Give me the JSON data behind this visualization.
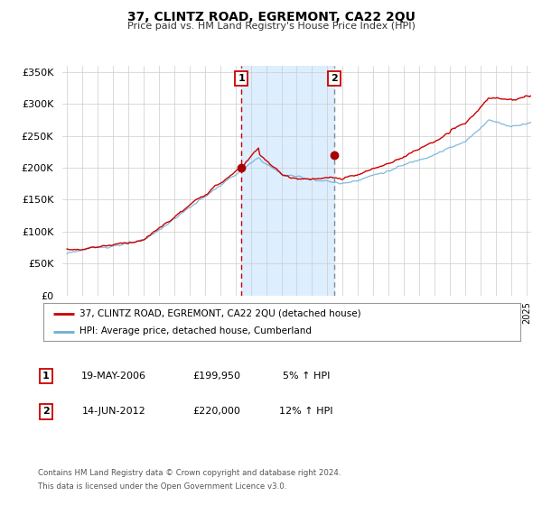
{
  "title": "37, CLINTZ ROAD, EGREMONT, CA22 2QU",
  "subtitle": "Price paid vs. HM Land Registry's House Price Index (HPI)",
  "legend_label1": "37, CLINTZ ROAD, EGREMONT, CA22 2QU (detached house)",
  "legend_label2": "HPI: Average price, detached house, Cumberland",
  "marker1_x": 2006.38,
  "marker1_price": 199950,
  "marker2_x": 2012.45,
  "marker2_price": 220000,
  "table_row1": [
    "1",
    "19-MAY-2006",
    "£199,950",
    "5% ↑ HPI"
  ],
  "table_row2": [
    "2",
    "14-JUN-2012",
    "£220,000",
    "12% ↑ HPI"
  ],
  "footer1": "Contains HM Land Registry data © Crown copyright and database right 2024.",
  "footer2": "This data is licensed under the Open Government Licence v3.0.",
  "hpi_line_color": "#6baed6",
  "price_line_color": "#cc0000",
  "marker_color": "#aa0000",
  "shading_color": "#ddeeff",
  "vline1_color": "#cc0000",
  "vline2_color": "#888888",
  "background_color": "#ffffff",
  "grid_color": "#cccccc",
  "ylim_min": 0,
  "ylim_max": 360000,
  "yticks": [
    0,
    50000,
    100000,
    150000,
    200000,
    250000,
    300000,
    350000
  ],
  "ytick_labels": [
    "£0",
    "£50K",
    "£100K",
    "£150K",
    "£200K",
    "£250K",
    "£300K",
    "£350K"
  ],
  "xstart_year": 1995,
  "xend_year": 2025,
  "fig_width": 6.0,
  "fig_height": 5.6,
  "dpi": 100
}
